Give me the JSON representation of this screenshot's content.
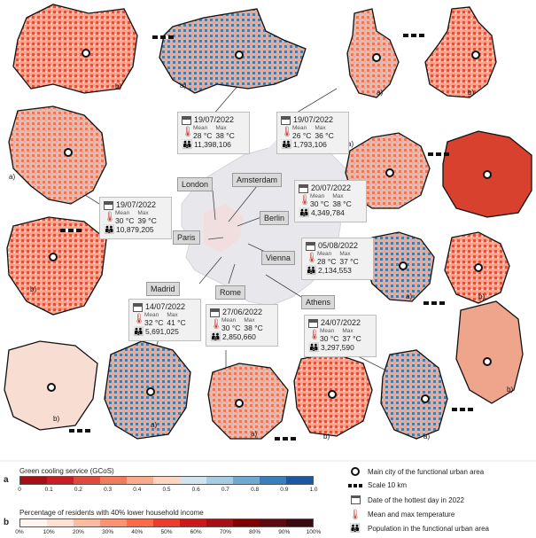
{
  "cities": [
    {
      "name": "London",
      "date": "19/07/2022",
      "mean_label": "Mean",
      "max_label": "Max",
      "mean": "28 °C",
      "max": "38 °C",
      "population": "11,398,106"
    },
    {
      "name": "Amsterdam",
      "date": "19/07/2022",
      "mean_label": "Mean",
      "max_label": "Max",
      "mean": "26 °C",
      "max": "36 °C",
      "population": "1,793,106"
    },
    {
      "name": "Paris",
      "date": "19/07/2022",
      "mean_label": "Mean",
      "max_label": "Max",
      "mean": "30 °C",
      "max": "39 °C",
      "population": "10,879,205"
    },
    {
      "name": "Berlin",
      "date": "20/07/2022",
      "mean_label": "Mean",
      "max_label": "Max",
      "mean": "30 °C",
      "max": "38 °C",
      "population": "4,349,784"
    },
    {
      "name": "Vienna",
      "date": "05/08/2022",
      "mean_label": "Mean",
      "max_label": "Max",
      "mean": "28 °C",
      "max": "37 °C",
      "population": "2,134,553"
    },
    {
      "name": "Madrid",
      "date": "14/07/2022",
      "mean_label": "Mean",
      "max_label": "Max",
      "mean": "32 °C",
      "max": "41 °C",
      "population": "5,691,025"
    },
    {
      "name": "Rome",
      "date": "27/06/2022",
      "mean_label": "Mean",
      "max_label": "Max",
      "mean": "30 °C",
      "max": "38 °C",
      "population": "2,850,660"
    },
    {
      "name": "Athens",
      "date": "24/07/2022",
      "mean_label": "Mean",
      "max_label": "Max",
      "mean": "30 °C",
      "max": "37 °C",
      "population": "3,297,590"
    }
  ],
  "panel_labels": {
    "a": "a)",
    "b": "b)"
  },
  "legend": {
    "a": {
      "letter": "a",
      "title": "Green cooling service (GCoS)",
      "colors": [
        "#a50f15",
        "#c81d25",
        "#e04a3c",
        "#f07c5e",
        "#f8ab8c",
        "#fcd5c1",
        "#d1e5f0",
        "#a6cbe2",
        "#6fa8d1",
        "#3a7fbb",
        "#1c58a0"
      ],
      "ticks": [
        "0",
        "0.1",
        "0.2",
        "0.3",
        "0.4",
        "0.5",
        "0.6",
        "0.7",
        "0.8",
        "0.9",
        "1.0"
      ]
    },
    "b": {
      "letter": "b",
      "title": "Percentage of residents with 40% lower household income",
      "colors": [
        "#fff5f0",
        "#fde0d2",
        "#fcbba1",
        "#fc9272",
        "#fb6a4a",
        "#ef3b2c",
        "#cb181d",
        "#a50f15",
        "#7f0000",
        "#5a0a10",
        "#3b0a10"
      ],
      "ticks": [
        "0%",
        "10%",
        "20%",
        "30%",
        "40%",
        "50%",
        "60%",
        "70%",
        "80%",
        "90%",
        "100%"
      ]
    },
    "items": {
      "main_city": "Main city of the functional urban area",
      "scale": "Scale 10 km",
      "date": "Date of the hottest day in 2022",
      "temp": "Mean and max temperature",
      "population": "Population in the functional urban area"
    }
  },
  "colors": {
    "warm": "#d7301f",
    "cool": "#3b78b5",
    "light": "#f5d0c0"
  }
}
